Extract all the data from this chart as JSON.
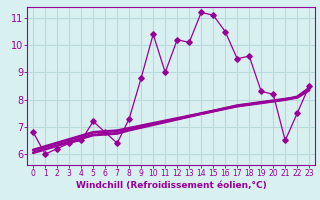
{
  "x_data": [
    0,
    1,
    2,
    3,
    4,
    5,
    6,
    7,
    8,
    9,
    10,
    11,
    12,
    13,
    14,
    15,
    16,
    17,
    18,
    19,
    20,
    21,
    22,
    23
  ],
  "y_main": [
    6.8,
    6.0,
    6.2,
    6.4,
    6.5,
    7.2,
    6.8,
    6.4,
    7.3,
    8.8,
    10.4,
    9.0,
    10.2,
    10.1,
    11.2,
    11.1,
    10.5,
    9.5,
    9.6,
    8.3,
    8.2,
    6.5,
    7.5,
    8.5
  ],
  "y_reg1": [
    6.15,
    6.28,
    6.41,
    6.54,
    6.67,
    6.8,
    6.83,
    6.86,
    6.95,
    7.04,
    7.13,
    7.22,
    7.31,
    7.4,
    7.49,
    7.58,
    7.67,
    7.76,
    7.82,
    7.88,
    7.94,
    8.0,
    8.1,
    8.42
  ],
  "y_reg2": [
    6.05,
    6.18,
    6.31,
    6.44,
    6.57,
    6.7,
    6.73,
    6.76,
    6.88,
    6.98,
    7.08,
    7.18,
    7.28,
    7.38,
    7.48,
    7.58,
    7.68,
    7.78,
    7.84,
    7.9,
    7.96,
    8.02,
    8.08,
    8.35
  ],
  "line_color": "#990099",
  "bg_color": "#d8f0f0",
  "grid_color": "#b8dada",
  "xlabel": "Windchill (Refroidissement éolien,°C)",
  "xlabel_fontsize": 6.5,
  "xlim": [
    -0.5,
    23.5
  ],
  "ylim": [
    5.6,
    11.4
  ],
  "yticks": [
    6,
    7,
    8,
    9,
    10,
    11
  ],
  "xticks": [
    0,
    1,
    2,
    3,
    4,
    5,
    6,
    7,
    8,
    9,
    10,
    11,
    12,
    13,
    14,
    15,
    16,
    17,
    18,
    19,
    20,
    21,
    22,
    23
  ],
  "tick_fontsize": 5.5
}
